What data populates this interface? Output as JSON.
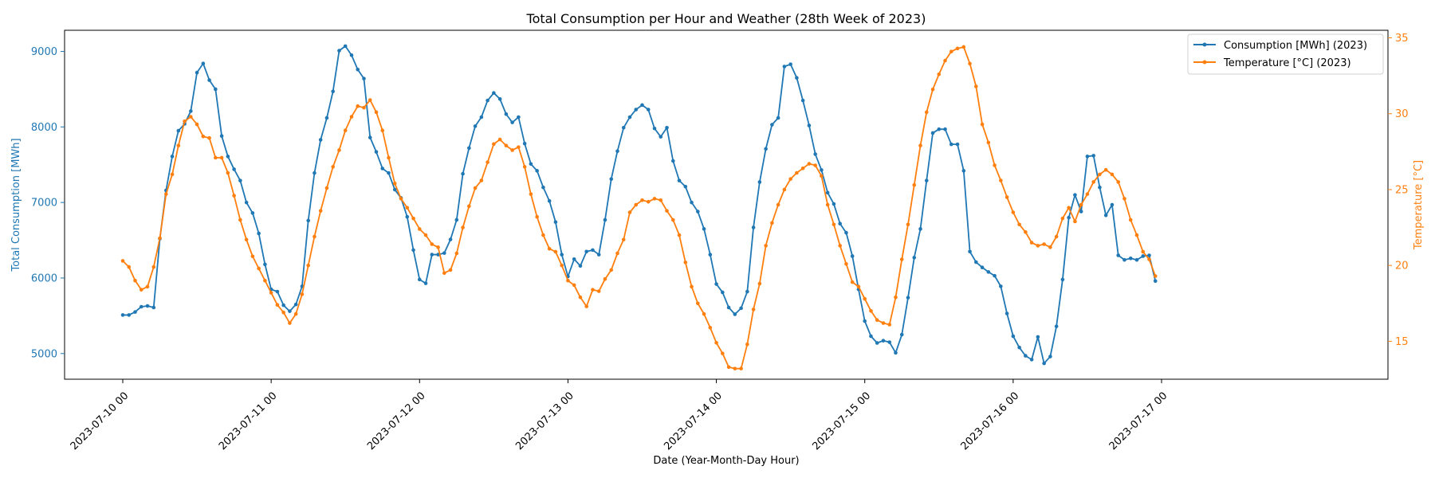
{
  "chart_data": {
    "type": "line",
    "title": "Total Consumption per Hour and Weather (28th Week of 2023)",
    "xlabel": "Date (Year-Month-Day Hour)",
    "ylabel_left": "Total Consumption [MWh]",
    "ylabel_right": "Temperature [°C]",
    "x_start": "2023-07-10 00:00",
    "x_step_hours": 1,
    "x_ticks": [
      "2023-07-10 00",
      "2023-07-11 00",
      "2023-07-12 00",
      "2023-07-13 00",
      "2023-07-14 00",
      "2023-07-15 00",
      "2023-07-16 00",
      "2023-07-17 00"
    ],
    "ylim_left": [
      4660,
      9280
    ],
    "yticks_left": [
      5000,
      6000,
      7000,
      8000,
      9000
    ],
    "ylim_right": [
      12.5,
      35.5
    ],
    "yticks_right": [
      15,
      20,
      25,
      30,
      35
    ],
    "grid": false,
    "legend_position": "top-right",
    "series": [
      {
        "name": "Consumption [MWh] (2023)",
        "axis": "left",
        "color": "#1f77b4",
        "values": [
          5510,
          5510,
          5550,
          5620,
          5630,
          5610,
          6520,
          7160,
          7610,
          7950,
          8040,
          8210,
          8720,
          8840,
          8620,
          8500,
          7880,
          7610,
          7440,
          7290,
          7000,
          6860,
          6590,
          6180,
          5850,
          5820,
          5640,
          5560,
          5650,
          5890,
          6760,
          7390,
          7830,
          8120,
          8470,
          9010,
          9070,
          8950,
          8760,
          8640,
          7860,
          7670,
          7450,
          7390,
          7170,
          7060,
          6810,
          6370,
          5980,
          5930,
          6310,
          6310,
          6330,
          6510,
          6770,
          7380,
          7720,
          8010,
          8130,
          8350,
          8450,
          8370,
          8170,
          8060,
          8130,
          7780,
          7510,
          7420,
          7200,
          7020,
          6740,
          6310,
          6020,
          6250,
          6160,
          6350,
          6370,
          6310,
          6770,
          7310,
          7680,
          7990,
          8130,
          8230,
          8290,
          8230,
          7980,
          7870,
          7990,
          7550,
          7290,
          7210,
          7000,
          6880,
          6650,
          6310,
          5920,
          5810,
          5610,
          5520,
          5600,
          5820,
          6670,
          7270,
          7710,
          8030,
          8120,
          8800,
          8830,
          8650,
          8350,
          8020,
          7640,
          7430,
          7130,
          6980,
          6720,
          6600,
          6290,
          5850,
          5430,
          5230,
          5140,
          5170,
          5150,
          5010,
          5250,
          5740,
          6270,
          6650,
          7290,
          7920,
          7970,
          7970,
          7770,
          7770,
          7420,
          6350,
          6210,
          6140,
          6080,
          6030,
          5890,
          5530,
          5230,
          5080,
          4970,
          4920,
          5220,
          4870,
          4960,
          5360,
          5980,
          6800,
          7100,
          6880,
          7610,
          7620,
          7200,
          6830,
          6970,
          6300,
          6240,
          6260,
          6240,
          6290,
          6300,
          5960
        ]
      },
      {
        "name": "Temperature [°C] (2023)",
        "axis": "right",
        "color": "#ff7f0e",
        "values": [
          20.3,
          19.9,
          19.0,
          18.4,
          18.6,
          19.9,
          21.8,
          24.7,
          26.0,
          27.9,
          29.5,
          29.8,
          29.3,
          28.5,
          28.4,
          27.1,
          27.1,
          26.1,
          24.6,
          23.0,
          21.7,
          20.6,
          19.8,
          19.0,
          18.2,
          17.4,
          16.9,
          16.2,
          16.8,
          18.1,
          20.0,
          21.9,
          23.6,
          25.1,
          26.5,
          27.6,
          28.9,
          29.8,
          30.5,
          30.4,
          30.9,
          30.1,
          28.9,
          27.1,
          25.4,
          24.4,
          23.8,
          23.1,
          22.4,
          22.0,
          21.4,
          21.2,
          19.5,
          19.7,
          20.8,
          22.5,
          23.9,
          25.1,
          25.6,
          26.8,
          28.0,
          28.3,
          27.9,
          27.6,
          27.8,
          26.5,
          24.7,
          23.2,
          22.0,
          21.1,
          20.9,
          20.0,
          19.0,
          18.7,
          17.9,
          17.3,
          18.4,
          18.3,
          19.1,
          19.7,
          20.8,
          21.7,
          23.5,
          24.0,
          24.3,
          24.2,
          24.4,
          24.3,
          23.6,
          23.0,
          22.0,
          20.2,
          18.6,
          17.5,
          16.8,
          15.9,
          14.9,
          14.2,
          13.3,
          13.2,
          13.2,
          14.8,
          17.1,
          18.8,
          21.3,
          22.8,
          24.0,
          25.0,
          25.7,
          26.1,
          26.4,
          26.7,
          26.6,
          25.9,
          24.0,
          22.7,
          21.3,
          20.1,
          18.9,
          18.6,
          17.8,
          17.0,
          16.4,
          16.2,
          16.1,
          17.9,
          20.4,
          22.7,
          25.3,
          27.9,
          30.1,
          31.6,
          32.6,
          33.5,
          34.1,
          34.3,
          34.4,
          33.3,
          31.8,
          29.3,
          28.1,
          26.6,
          25.6,
          24.5,
          23.5,
          22.7,
          22.2,
          21.5,
          21.3,
          21.4,
          21.2,
          21.9,
          23.1,
          23.8,
          22.9,
          24.0,
          24.7,
          25.5,
          26.0,
          26.3,
          26.0,
          25.5,
          24.4,
          23.0,
          22.0,
          20.9,
          20.4,
          19.3
        ]
      }
    ]
  }
}
